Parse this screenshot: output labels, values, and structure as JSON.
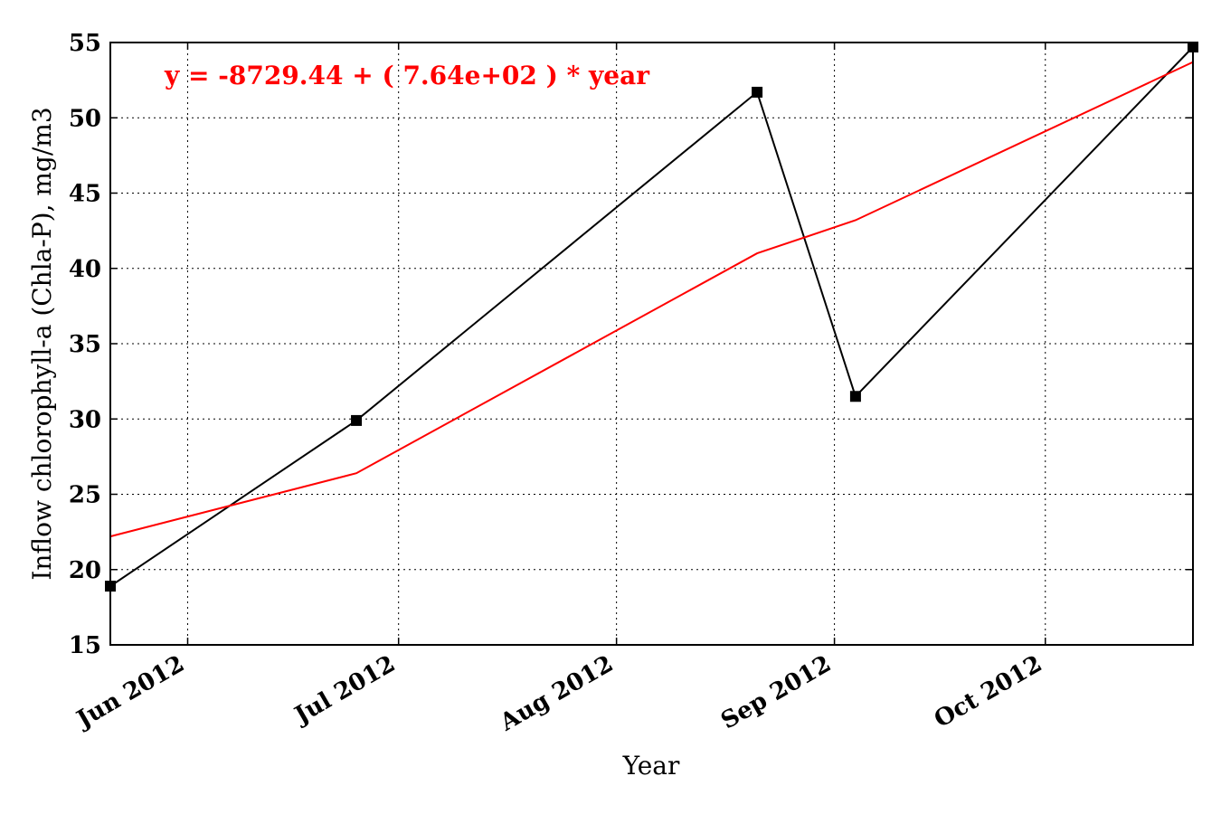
{
  "chart_data": {
    "type": "line",
    "xlabel": "Year",
    "ylabel": "Inflow chlorophyll-a (Chla-P), mg/m3",
    "annotation": "y = -8729.44 + ( 7.64e+02 ) * year",
    "annotation_color": "#ff0000",
    "xlim": [
      "2012-05-21",
      "2012-10-22"
    ],
    "ylim": [
      15,
      55
    ],
    "yticks": [
      15,
      20,
      25,
      30,
      35,
      40,
      45,
      50,
      55
    ],
    "xticks": [
      {
        "date": "2012-06-01",
        "label": "Jun 2012"
      },
      {
        "date": "2012-07-01",
        "label": "Jul 2012"
      },
      {
        "date": "2012-08-01",
        "label": "Aug 2012"
      },
      {
        "date": "2012-09-01",
        "label": "Sep 2012"
      },
      {
        "date": "2012-10-01",
        "label": "Oct 2012"
      }
    ],
    "grid": true,
    "series": [
      {
        "color": "#000000",
        "marker": "square",
        "x": [
          "2012-05-21",
          "2012-06-25",
          "2012-08-21",
          "2012-09-04",
          "2012-10-22"
        ],
        "y": [
          18.9,
          29.9,
          51.7,
          31.5,
          54.7
        ]
      },
      {
        "color": "#ff0000",
        "marker": "none",
        "x": [
          "2012-05-21",
          "2012-06-25",
          "2012-08-21",
          "2012-09-04",
          "2012-10-22"
        ],
        "y": [
          22.2,
          26.4,
          41.0,
          43.2,
          53.7
        ]
      }
    ]
  }
}
